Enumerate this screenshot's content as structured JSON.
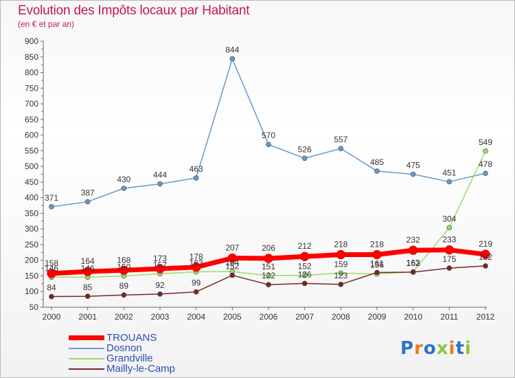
{
  "header": {
    "title": "Evolution des Impôts locaux par Habitant",
    "subtitle": "(en € et par an)"
  },
  "logo": {
    "text": "Proxiti",
    "colors": [
      "#2a73c9",
      "#e67e22",
      "#2a73c9",
      "#8cc63f",
      "#e67e22",
      "#2a73c9",
      "#8cc63f"
    ]
  },
  "chart_data": {
    "type": "line",
    "title": "Evolution des Impôts locaux par Habitant",
    "subtitle": "(en € et par an)",
    "xlabel": "",
    "ylabel": "",
    "x": [
      "2000",
      "2001",
      "2002",
      "2003",
      "2004",
      "2005",
      "2006",
      "2007",
      "2008",
      "2009",
      "2010",
      "2011",
      "2012"
    ],
    "ylim": [
      50,
      900
    ],
    "yticks": [
      50,
      100,
      150,
      200,
      250,
      300,
      350,
      400,
      450,
      500,
      550,
      600,
      650,
      700,
      750,
      800,
      850,
      900
    ],
    "grid": false,
    "legend_position": "bottom-left",
    "series": [
      {
        "name": "TROUANS",
        "color": "#ff0000",
        "values": [
          158,
          164,
          168,
          173,
          178,
          207,
          206,
          212,
          218,
          218,
          232,
          233,
          219
        ],
        "labels": [
          "158",
          "164",
          "168",
          "173",
          "178",
          "207",
          "206",
          "212",
          "218",
          "218",
          "232",
          "233",
          "219"
        ]
      },
      {
        "name": "Dosnon",
        "color": "#6699cc",
        "values": [
          371,
          387,
          430,
          444,
          463,
          844,
          570,
          526,
          557,
          485,
          475,
          451,
          478
        ],
        "labels": [
          "371",
          "387",
          "430",
          "444",
          "463",
          "844",
          "570",
          "526",
          "557",
          "485",
          "475",
          "451",
          "478"
        ]
      },
      {
        "name": "Grandville",
        "color": "#99dd66",
        "values": [
          146,
          146,
          150,
          157,
          163,
          164,
          151,
          152,
          159,
          156,
          163,
          304,
          549
        ],
        "labels": [
          "146",
          "146",
          "150",
          "157",
          "163",
          "164",
          "151",
          "152",
          "159",
          "156",
          "163",
          "304",
          "549"
        ]
      },
      {
        "name": "Mailly-le-Camp",
        "color": "#7a2626",
        "values": [
          84,
          85,
          89,
          92,
          99,
          152,
          122,
          126,
          123,
          161,
          162,
          175,
          182
        ],
        "labels": [
          "84",
          "85",
          "89",
          "92",
          "99",
          "152",
          "122",
          "126",
          "123",
          "161",
          "162",
          "175",
          "182"
        ]
      }
    ]
  }
}
